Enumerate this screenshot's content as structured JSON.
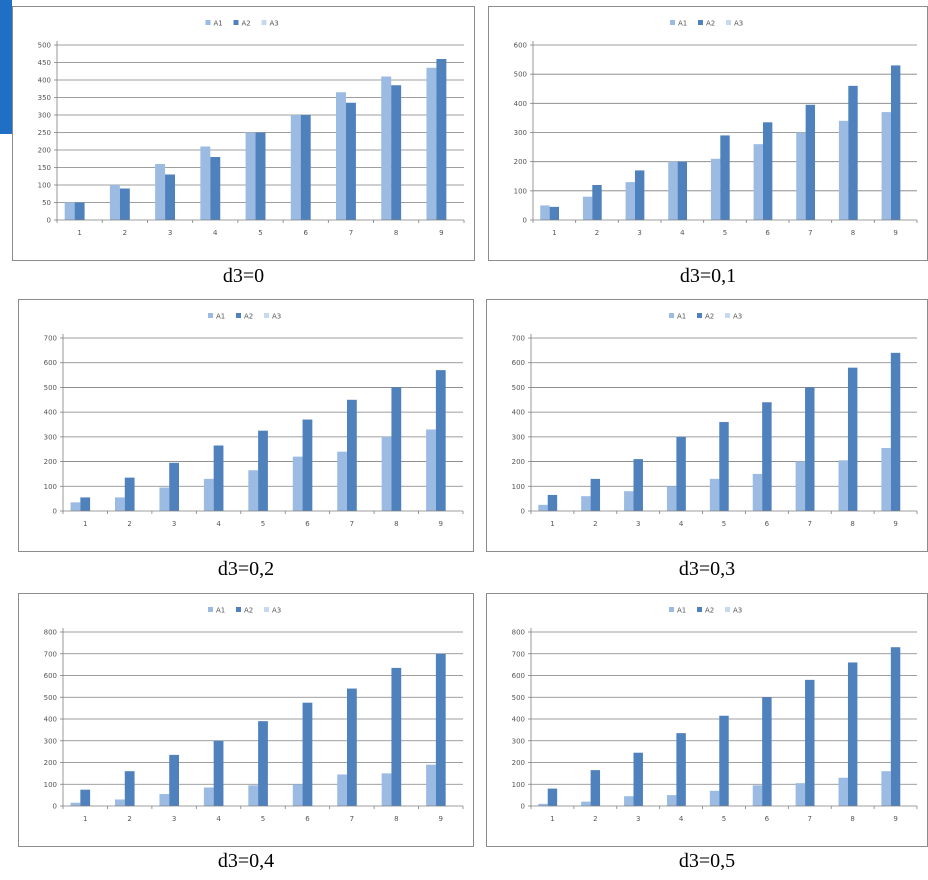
{
  "colors": {
    "A1": "#9bbbe3",
    "A2": "#4f81bd",
    "A3": "#c6d9f1",
    "grid": "#7f7f7f",
    "accent_strip": "#1f6fc4"
  },
  "chart_data": [
    {
      "type": "bar",
      "caption": "d3=0",
      "legend": [
        "A1",
        "A2",
        "A3"
      ],
      "legend_position": "top",
      "grid": true,
      "categories": [
        "1",
        "2",
        "3",
        "4",
        "5",
        "6",
        "7",
        "8",
        "9"
      ],
      "yticks": [
        "0",
        "50",
        "100",
        "150",
        "200",
        "250",
        "300",
        "350",
        "400",
        "450",
        "500"
      ],
      "ylim": [
        0,
        500
      ],
      "series": [
        {
          "name": "A1",
          "values": [
            50,
            100,
            160,
            210,
            250,
            300,
            365,
            410,
            435
          ]
        },
        {
          "name": "A2",
          "values": [
            50,
            90,
            130,
            180,
            250,
            300,
            335,
            385,
            460
          ]
        },
        {
          "name": "A3",
          "values": [
            0,
            0,
            0,
            0,
            0,
            0,
            0,
            0,
            0
          ]
        }
      ]
    },
    {
      "type": "bar",
      "caption": "d3=0,1",
      "legend": [
        "A1",
        "A2",
        "A3"
      ],
      "legend_position": "top",
      "grid": true,
      "categories": [
        "1",
        "2",
        "3",
        "4",
        "5",
        "6",
        "7",
        "8",
        "9"
      ],
      "yticks": [
        "0",
        "100",
        "200",
        "300",
        "400",
        "500",
        "600"
      ],
      "ylim": [
        0,
        600
      ],
      "series": [
        {
          "name": "A1",
          "values": [
            50,
            80,
            130,
            200,
            210,
            260,
            300,
            340,
            370
          ]
        },
        {
          "name": "A2",
          "values": [
            45,
            120,
            170,
            200,
            290,
            335,
            395,
            460,
            530
          ]
        },
        {
          "name": "A3",
          "values": [
            0,
            0,
            0,
            0,
            0,
            0,
            0,
            0,
            0
          ]
        }
      ]
    },
    {
      "type": "bar",
      "caption": "d3=0,2",
      "legend": [
        "A1",
        "A2",
        "A3"
      ],
      "legend_position": "top",
      "grid": true,
      "categories": [
        "1",
        "2",
        "3",
        "4",
        "5",
        "6",
        "7",
        "8",
        "9"
      ],
      "yticks": [
        "0",
        "100",
        "200",
        "300",
        "400",
        "500",
        "600",
        "700"
      ],
      "ylim": [
        0,
        700
      ],
      "series": [
        {
          "name": "A1",
          "values": [
            35,
            55,
            95,
            130,
            165,
            220,
            240,
            300,
            330
          ]
        },
        {
          "name": "A2",
          "values": [
            55,
            135,
            195,
            265,
            325,
            370,
            450,
            500,
            570
          ]
        },
        {
          "name": "A3",
          "values": [
            0,
            0,
            0,
            0,
            0,
            0,
            0,
            0,
            0
          ]
        }
      ]
    },
    {
      "type": "bar",
      "caption": "d3=0,3",
      "legend": [
        "A1",
        "A2",
        "A3"
      ],
      "legend_position": "top",
      "grid": true,
      "categories": [
        "1",
        "2",
        "3",
        "4",
        "5",
        "6",
        "7",
        "8",
        "9"
      ],
      "yticks": [
        "0",
        "100",
        "200",
        "300",
        "400",
        "500",
        "600",
        "700"
      ],
      "ylim": [
        0,
        700
      ],
      "series": [
        {
          "name": "A1",
          "values": [
            25,
            60,
            80,
            100,
            130,
            150,
            200,
            205,
            255
          ]
        },
        {
          "name": "A2",
          "values": [
            65,
            130,
            210,
            300,
            360,
            440,
            500,
            580,
            640
          ]
        },
        {
          "name": "A3",
          "values": [
            0,
            0,
            0,
            0,
            0,
            0,
            0,
            0,
            0
          ]
        }
      ]
    },
    {
      "type": "bar",
      "caption": "d3=0,4",
      "legend": [
        "A1",
        "A2",
        "A3"
      ],
      "legend_position": "top",
      "grid": true,
      "categories": [
        "1",
        "2",
        "3",
        "4",
        "5",
        "6",
        "7",
        "8",
        "9"
      ],
      "yticks": [
        "0",
        "100",
        "200",
        "300",
        "400",
        "500",
        "600",
        "700",
        "800"
      ],
      "ylim": [
        0,
        800
      ],
      "series": [
        {
          "name": "A1",
          "values": [
            15,
            30,
            55,
            85,
            95,
            100,
            145,
            150,
            190
          ]
        },
        {
          "name": "A2",
          "values": [
            75,
            160,
            235,
            300,
            390,
            475,
            540,
            635,
            700
          ]
        },
        {
          "name": "A3",
          "values": [
            0,
            0,
            0,
            0,
            0,
            0,
            0,
            0,
            0
          ]
        }
      ]
    },
    {
      "type": "bar",
      "caption": "d3=0,5",
      "legend": [
        "A1",
        "A2",
        "A3"
      ],
      "legend_position": "top",
      "grid": true,
      "categories": [
        "1",
        "2",
        "3",
        "4",
        "5",
        "6",
        "7",
        "8",
        "9"
      ],
      "yticks": [
        "0",
        "100",
        "200",
        "300",
        "400",
        "500",
        "600",
        "700",
        "800"
      ],
      "ylim": [
        0,
        800
      ],
      "series": [
        {
          "name": "A1",
          "values": [
            10,
            20,
            45,
            50,
            70,
            95,
            105,
            130,
            160
          ]
        },
        {
          "name": "A2",
          "values": [
            80,
            165,
            245,
            335,
            415,
            500,
            580,
            660,
            730
          ]
        },
        {
          "name": "A3",
          "values": [
            0,
            0,
            0,
            0,
            0,
            0,
            0,
            0,
            0
          ]
        }
      ]
    }
  ]
}
